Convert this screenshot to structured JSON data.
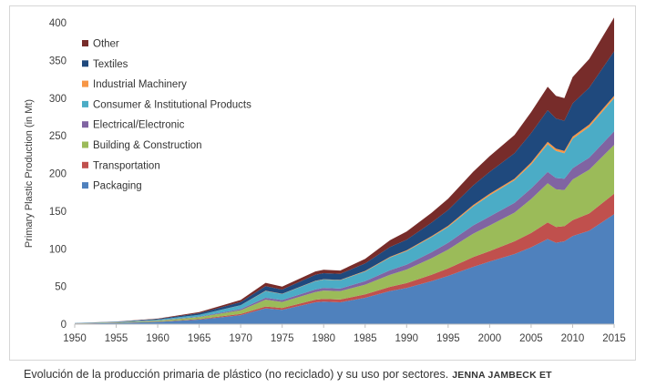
{
  "caption": {
    "text": "Evolución de la producción primaria de plástico (no reciclado) y su uso por sectores.",
    "credit": "JENNA JAMBECK ET"
  },
  "chart_data": {
    "type": "area",
    "stacked": true,
    "title": "",
    "xlabel": "",
    "ylabel": "Primary Plastic Production (in Mt)",
    "xlim": [
      1950,
      2015
    ],
    "ylim": [
      0,
      400
    ],
    "x_ticks": [
      1950,
      1955,
      1960,
      1965,
      1970,
      1975,
      1980,
      1985,
      1990,
      1995,
      2000,
      2005,
      2010,
      2015
    ],
    "y_ticks": [
      0,
      50,
      100,
      150,
      200,
      250,
      300,
      350,
      400
    ],
    "grid": false,
    "legend": "top-left",
    "x": [
      1950,
      1955,
      1960,
      1965,
      1970,
      1973,
      1975,
      1979,
      1980,
      1982,
      1985,
      1988,
      1990,
      1993,
      1995,
      1998,
      2000,
      2003,
      2005,
      2007,
      2008,
      2009,
      2010,
      2012,
      2015
    ],
    "series": [
      {
        "name": "Packaging",
        "color": "#4f81bd",
        "values": [
          0.6,
          1.5,
          3,
          6,
          12,
          21,
          19,
          29,
          30,
          29,
          35,
          44,
          48,
          57,
          64,
          76,
          83,
          93,
          102,
          113,
          108,
          110,
          117,
          124,
          146
        ]
      },
      {
        "name": "Transportation",
        "color": "#c0504d",
        "values": [
          0.1,
          0.2,
          0.4,
          0.8,
          1.5,
          2.5,
          2.5,
          3.5,
          3.6,
          3.7,
          4.5,
          5.5,
          6.5,
          8.5,
          10,
          13,
          14,
          17,
          19,
          22,
          21,
          20,
          21,
          23,
          27
        ]
      },
      {
        "name": "Building & Construction",
        "color": "#9bbb59",
        "values": [
          0.3,
          0.6,
          1.2,
          2.5,
          5,
          9,
          8,
          10,
          11,
          11,
          13,
          16,
          18,
          22,
          25,
          31,
          34,
          38,
          45,
          52,
          50,
          48,
          54,
          58,
          65
        ]
      },
      {
        "name": "Electrical/Electronic",
        "color": "#8064a2",
        "values": [
          0.1,
          0.2,
          0.4,
          0.7,
          1.5,
          2.5,
          2.5,
          3.5,
          3.6,
          3.5,
          4.5,
          6,
          6.5,
          8,
          9,
          11,
          12,
          13,
          14,
          15,
          15,
          15,
          15,
          16,
          18
        ]
      },
      {
        "name": "Consumer & Institutional Products",
        "color": "#4bacc6",
        "values": [
          0.2,
          0.5,
          1,
          2.5,
          5,
          9,
          8,
          11,
          11,
          11,
          13,
          17,
          18,
          20,
          21,
          25,
          28,
          30,
          32,
          37,
          36,
          34,
          39,
          41,
          44
        ]
      },
      {
        "name": "Industrial Machinery",
        "color": "#f79646",
        "values": [
          0,
          0,
          0,
          0,
          0.2,
          0.4,
          0.4,
          0.5,
          0.5,
          0.5,
          0.7,
          0.9,
          1,
          1.2,
          1.5,
          2,
          2,
          2,
          2.5,
          3,
          3,
          3,
          3,
          3,
          3
        ]
      },
      {
        "name": "Textiles",
        "color": "#1f497d",
        "values": [
          0.1,
          0.3,
          0.8,
          2,
          4,
          6,
          5.5,
          8,
          8,
          8,
          10,
          13,
          14,
          18,
          21,
          26,
          29,
          34,
          39,
          42,
          40,
          40,
          44,
          49,
          59
        ]
      },
      {
        "name": "Other",
        "color": "#772c2a",
        "values": [
          0.1,
          0.2,
          0.6,
          1.5,
          3,
          4.5,
          4,
          4.5,
          4.5,
          4.5,
          6,
          9,
          11,
          13,
          15,
          18,
          21,
          24,
          28,
          31,
          30,
          30,
          35,
          38,
          45
        ]
      }
    ]
  }
}
